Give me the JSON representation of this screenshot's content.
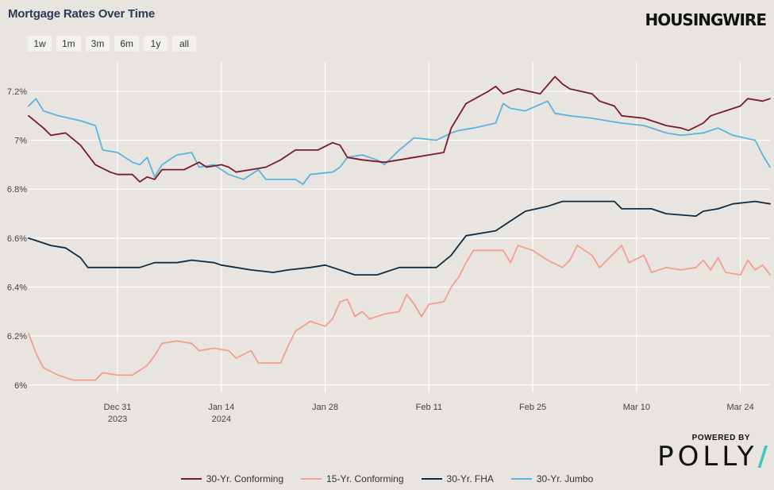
{
  "title": "Mortgage Rates Over Time",
  "brand": "HOUSINGWIRE",
  "ranges": [
    "1w",
    "1m",
    "3m",
    "6m",
    "1y",
    "all"
  ],
  "powered_by": "POWERED BY",
  "polly": "POLLY",
  "colors": {
    "conforming30": "#7b1a2b",
    "conforming15": "#f59d92",
    "fha30": "#0f2c40",
    "jumbo30": "#5bb3df"
  },
  "chart_data": {
    "type": "line",
    "title": "Mortgage Rates Over Time",
    "ylim": [
      5.97,
      7.32
    ],
    "yticks": [
      6.0,
      6.2,
      6.4,
      6.6,
      6.8,
      7.0,
      7.2
    ],
    "ytick_labels": [
      "6%",
      "6.2%",
      "6.4%",
      "6.6%",
      "6.8%",
      "7%",
      "7.2%"
    ],
    "xlim": [
      "2023-12-19",
      "2024-03-28"
    ],
    "xticks": [
      {
        "date": "2023-12-31",
        "label": "Dec 31",
        "sub": "2023"
      },
      {
        "date": "2024-01-14",
        "label": "Jan 14",
        "sub": "2024"
      },
      {
        "date": "2024-01-28",
        "label": "Jan 28",
        "sub": ""
      },
      {
        "date": "2024-02-11",
        "label": "Feb 11",
        "sub": ""
      },
      {
        "date": "2024-02-25",
        "label": "Feb 25",
        "sub": ""
      },
      {
        "date": "2024-03-10",
        "label": "Mar 10",
        "sub": ""
      },
      {
        "date": "2024-03-24",
        "label": "Mar 24",
        "sub": ""
      }
    ],
    "grid": true,
    "legend_position": "bottom",
    "series": [
      {
        "name": "30-Yr. Conforming",
        "points": [
          [
            "2023-12-19",
            7.1
          ],
          [
            "2023-12-21",
            7.05
          ],
          [
            "2023-12-22",
            7.02
          ],
          [
            "2023-12-24",
            7.03
          ],
          [
            "2023-12-26",
            6.98
          ],
          [
            "2023-12-28",
            6.9
          ],
          [
            "2023-12-30",
            6.87
          ],
          [
            "2023-12-31",
            6.86
          ],
          [
            "2024-01-02",
            6.86
          ],
          [
            "2024-01-03",
            6.83
          ],
          [
            "2024-01-04",
            6.85
          ],
          [
            "2024-01-05",
            6.84
          ],
          [
            "2024-01-06",
            6.88
          ],
          [
            "2024-01-09",
            6.88
          ],
          [
            "2024-01-11",
            6.91
          ],
          [
            "2024-01-12",
            6.89
          ],
          [
            "2024-01-14",
            6.9
          ],
          [
            "2024-01-15",
            6.89
          ],
          [
            "2024-01-16",
            6.87
          ],
          [
            "2024-01-18",
            6.88
          ],
          [
            "2024-01-20",
            6.89
          ],
          [
            "2024-01-22",
            6.92
          ],
          [
            "2024-01-24",
            6.96
          ],
          [
            "2024-01-27",
            6.96
          ],
          [
            "2024-01-29",
            6.99
          ],
          [
            "2024-01-30",
            6.98
          ],
          [
            "2024-01-31",
            6.93
          ],
          [
            "2024-02-02",
            6.92
          ],
          [
            "2024-02-05",
            6.91
          ],
          [
            "2024-02-07",
            6.92
          ],
          [
            "2024-02-09",
            6.93
          ],
          [
            "2024-02-11",
            6.94
          ],
          [
            "2024-02-13",
            6.95
          ],
          [
            "2024-02-14",
            7.05
          ],
          [
            "2024-02-16",
            7.15
          ],
          [
            "2024-02-19",
            7.2
          ],
          [
            "2024-02-20",
            7.22
          ],
          [
            "2024-02-21",
            7.19
          ],
          [
            "2024-02-23",
            7.21
          ],
          [
            "2024-02-26",
            7.19
          ],
          [
            "2024-02-28",
            7.26
          ],
          [
            "2024-02-29",
            7.23
          ],
          [
            "2024-03-01",
            7.21
          ],
          [
            "2024-03-04",
            7.19
          ],
          [
            "2024-03-05",
            7.16
          ],
          [
            "2024-03-07",
            7.14
          ],
          [
            "2024-03-08",
            7.1
          ],
          [
            "2024-03-11",
            7.09
          ],
          [
            "2024-03-13",
            7.07
          ],
          [
            "2024-03-14",
            7.06
          ],
          [
            "2024-03-16",
            7.05
          ],
          [
            "2024-03-17",
            7.04
          ],
          [
            "2024-03-19",
            7.07
          ],
          [
            "2024-03-20",
            7.1
          ],
          [
            "2024-03-21",
            7.11
          ],
          [
            "2024-03-22",
            7.12
          ],
          [
            "2024-03-24",
            7.14
          ],
          [
            "2024-03-25",
            7.17
          ],
          [
            "2024-03-27",
            7.16
          ],
          [
            "2024-03-28",
            7.17
          ]
        ]
      },
      {
        "name": "15-Yr. Conforming",
        "points": [
          [
            "2023-12-19",
            6.21
          ],
          [
            "2023-12-20",
            6.13
          ],
          [
            "2023-12-21",
            6.07
          ],
          [
            "2023-12-23",
            6.04
          ],
          [
            "2023-12-25",
            6.02
          ],
          [
            "2023-12-28",
            6.02
          ],
          [
            "2023-12-29",
            6.05
          ],
          [
            "2023-12-31",
            6.04
          ],
          [
            "2024-01-02",
            6.04
          ],
          [
            "2024-01-04",
            6.08
          ],
          [
            "2024-01-05",
            6.12
          ],
          [
            "2024-01-06",
            6.17
          ],
          [
            "2024-01-08",
            6.18
          ],
          [
            "2024-01-10",
            6.17
          ],
          [
            "2024-01-11",
            6.14
          ],
          [
            "2024-01-13",
            6.15
          ],
          [
            "2024-01-15",
            6.14
          ],
          [
            "2024-01-16",
            6.11
          ],
          [
            "2024-01-18",
            6.14
          ],
          [
            "2024-01-19",
            6.09
          ],
          [
            "2024-01-22",
            6.09
          ],
          [
            "2024-01-23",
            6.16
          ],
          [
            "2024-01-24",
            6.22
          ],
          [
            "2024-01-26",
            6.26
          ],
          [
            "2024-01-28",
            6.24
          ],
          [
            "2024-01-29",
            6.27
          ],
          [
            "2024-01-30",
            6.34
          ],
          [
            "2024-01-31",
            6.35
          ],
          [
            "2024-02-01",
            6.28
          ],
          [
            "2024-02-02",
            6.3
          ],
          [
            "2024-02-03",
            6.27
          ],
          [
            "2024-02-05",
            6.29
          ],
          [
            "2024-02-07",
            6.3
          ],
          [
            "2024-02-08",
            6.37
          ],
          [
            "2024-02-09",
            6.33
          ],
          [
            "2024-02-10",
            6.28
          ],
          [
            "2024-02-11",
            6.33
          ],
          [
            "2024-02-13",
            6.34
          ],
          [
            "2024-02-14",
            6.4
          ],
          [
            "2024-02-15",
            6.44
          ],
          [
            "2024-02-16",
            6.5
          ],
          [
            "2024-02-17",
            6.55
          ],
          [
            "2024-02-21",
            6.55
          ],
          [
            "2024-02-22",
            6.5
          ],
          [
            "2024-02-23",
            6.57
          ],
          [
            "2024-02-25",
            6.55
          ],
          [
            "2024-02-27",
            6.51
          ],
          [
            "2024-02-29",
            6.48
          ],
          [
            "2024-03-01",
            6.51
          ],
          [
            "2024-03-02",
            6.57
          ],
          [
            "2024-03-04",
            6.53
          ],
          [
            "2024-03-05",
            6.48
          ],
          [
            "2024-03-07",
            6.54
          ],
          [
            "2024-03-08",
            6.57
          ],
          [
            "2024-03-09",
            6.5
          ],
          [
            "2024-03-11",
            6.53
          ],
          [
            "2024-03-12",
            6.46
          ],
          [
            "2024-03-14",
            6.48
          ],
          [
            "2024-03-16",
            6.47
          ],
          [
            "2024-03-18",
            6.48
          ],
          [
            "2024-03-19",
            6.51
          ],
          [
            "2024-03-20",
            6.47
          ],
          [
            "2024-03-21",
            6.52
          ],
          [
            "2024-03-22",
            6.46
          ],
          [
            "2024-03-24",
            6.45
          ],
          [
            "2024-03-25",
            6.51
          ],
          [
            "2024-03-26",
            6.47
          ],
          [
            "2024-03-27",
            6.49
          ],
          [
            "2024-03-28",
            6.45
          ]
        ]
      },
      {
        "name": "30-Yr. FHA",
        "points": [
          [
            "2023-12-19",
            6.6
          ],
          [
            "2023-12-21",
            6.58
          ],
          [
            "2023-12-22",
            6.57
          ],
          [
            "2023-12-24",
            6.56
          ],
          [
            "2023-12-26",
            6.52
          ],
          [
            "2023-12-27",
            6.48
          ],
          [
            "2023-12-31",
            6.48
          ],
          [
            "2024-01-03",
            6.48
          ],
          [
            "2024-01-05",
            6.5
          ],
          [
            "2024-01-08",
            6.5
          ],
          [
            "2024-01-10",
            6.51
          ],
          [
            "2024-01-13",
            6.5
          ],
          [
            "2024-01-14",
            6.49
          ],
          [
            "2024-01-16",
            6.48
          ],
          [
            "2024-01-18",
            6.47
          ],
          [
            "2024-01-21",
            6.46
          ],
          [
            "2024-01-23",
            6.47
          ],
          [
            "2024-01-26",
            6.48
          ],
          [
            "2024-01-28",
            6.49
          ],
          [
            "2024-01-29",
            6.48
          ],
          [
            "2024-02-01",
            6.45
          ],
          [
            "2024-02-04",
            6.45
          ],
          [
            "2024-02-05",
            6.46
          ],
          [
            "2024-02-07",
            6.48
          ],
          [
            "2024-02-12",
            6.48
          ],
          [
            "2024-02-14",
            6.53
          ],
          [
            "2024-02-15",
            6.57
          ],
          [
            "2024-02-16",
            6.61
          ],
          [
            "2024-02-20",
            6.63
          ],
          [
            "2024-02-22",
            6.67
          ],
          [
            "2024-02-24",
            6.71
          ],
          [
            "2024-02-27",
            6.73
          ],
          [
            "2024-02-29",
            6.75
          ],
          [
            "2024-03-07",
            6.75
          ],
          [
            "2024-03-08",
            6.72
          ],
          [
            "2024-03-12",
            6.72
          ],
          [
            "2024-03-14",
            6.7
          ],
          [
            "2024-03-18",
            6.69
          ],
          [
            "2024-03-19",
            6.71
          ],
          [
            "2024-03-21",
            6.72
          ],
          [
            "2024-03-23",
            6.74
          ],
          [
            "2024-03-26",
            6.75
          ],
          [
            "2024-03-28",
            6.74
          ]
        ]
      },
      {
        "name": "30-Yr. Jumbo",
        "points": [
          [
            "2023-12-19",
            7.14
          ],
          [
            "2023-12-20",
            7.17
          ],
          [
            "2023-12-21",
            7.12
          ],
          [
            "2023-12-23",
            7.1
          ],
          [
            "2023-12-26",
            7.08
          ],
          [
            "2023-12-28",
            7.06
          ],
          [
            "2023-12-29",
            6.96
          ],
          [
            "2023-12-31",
            6.95
          ],
          [
            "2024-01-02",
            6.91
          ],
          [
            "2024-01-03",
            6.9
          ],
          [
            "2024-01-04",
            6.93
          ],
          [
            "2024-01-05",
            6.85
          ],
          [
            "2024-01-06",
            6.9
          ],
          [
            "2024-01-08",
            6.94
          ],
          [
            "2024-01-10",
            6.95
          ],
          [
            "2024-01-11",
            6.89
          ],
          [
            "2024-01-13",
            6.9
          ],
          [
            "2024-01-15",
            6.86
          ],
          [
            "2024-01-17",
            6.84
          ],
          [
            "2024-01-19",
            6.88
          ],
          [
            "2024-01-20",
            6.84
          ],
          [
            "2024-01-24",
            6.84
          ],
          [
            "2024-01-25",
            6.82
          ],
          [
            "2024-01-26",
            6.86
          ],
          [
            "2024-01-29",
            6.87
          ],
          [
            "2024-01-30",
            6.89
          ],
          [
            "2024-01-31",
            6.93
          ],
          [
            "2024-02-02",
            6.94
          ],
          [
            "2024-02-04",
            6.92
          ],
          [
            "2024-02-05",
            6.9
          ],
          [
            "2024-02-07",
            6.96
          ],
          [
            "2024-02-09",
            7.01
          ],
          [
            "2024-02-12",
            7.0
          ],
          [
            "2024-02-14",
            7.03
          ],
          [
            "2024-02-15",
            7.04
          ],
          [
            "2024-02-17",
            7.05
          ],
          [
            "2024-02-20",
            7.07
          ],
          [
            "2024-02-21",
            7.15
          ],
          [
            "2024-02-22",
            7.13
          ],
          [
            "2024-02-24",
            7.12
          ],
          [
            "2024-02-27",
            7.16
          ],
          [
            "2024-02-28",
            7.11
          ],
          [
            "2024-03-01",
            7.1
          ],
          [
            "2024-03-04",
            7.09
          ],
          [
            "2024-03-06",
            7.08
          ],
          [
            "2024-03-08",
            7.07
          ],
          [
            "2024-03-11",
            7.06
          ],
          [
            "2024-03-14",
            7.03
          ],
          [
            "2024-03-16",
            7.02
          ],
          [
            "2024-03-19",
            7.03
          ],
          [
            "2024-03-21",
            7.05
          ],
          [
            "2024-03-23",
            7.02
          ],
          [
            "2024-03-26",
            7.0
          ],
          [
            "2024-03-27",
            6.94
          ],
          [
            "2024-03-28",
            6.89
          ]
        ]
      }
    ]
  }
}
